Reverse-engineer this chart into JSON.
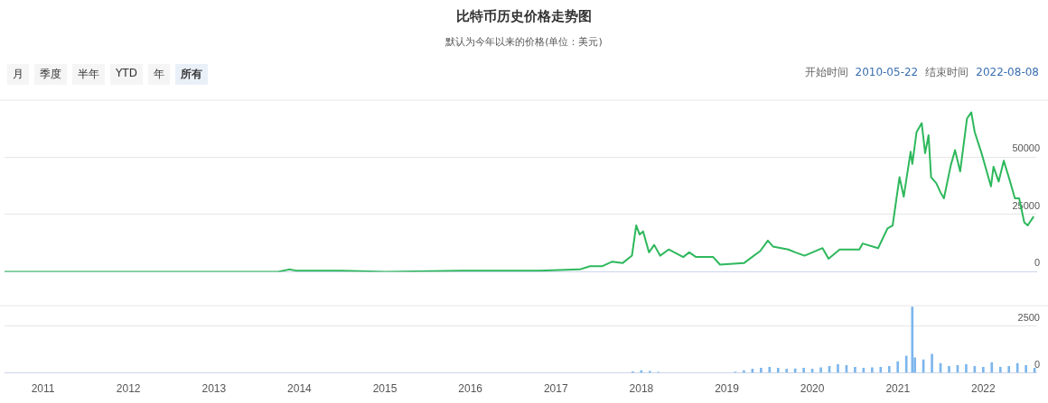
{
  "chart_data": [
    {
      "type": "line",
      "title": "比特币历史价格走势图",
      "subtitle": "默认为今年以来的价格(单位：美元)",
      "annotations": [
        "月",
        "季度",
        "半年",
        "YTD",
        "年",
        "所有",
        "开始时间",
        "2010-05-22",
        "结束时间",
        "2022-08-08"
      ],
      "xlim": [
        2010.55,
        2022.62
      ],
      "xticks": [
        2011,
        2012,
        2013,
        2014,
        2015,
        2016,
        2017,
        2018,
        2019,
        2020,
        2021,
        2022
      ],
      "ylim": [
        0,
        75000
      ],
      "yticks": [
        0,
        25000,
        50000
      ],
      "grid": "y",
      "tick_labels": "y",
      "marker": "none",
      "series": [
        {
          "color": "#2eb85c",
          "x": [
            2010.55,
            2013.12,
            2013.75,
            2013.88,
            2013.96,
            2014.12,
            2014.49,
            2015.01,
            2015.96,
            2016.38,
            2016.8,
            2017.28,
            2017.4,
            2017.54,
            2017.66,
            2017.78,
            2017.89,
            2017.94,
            2017.98,
            2018.02,
            2018.09,
            2018.15,
            2018.22,
            2018.32,
            2018.49,
            2018.56,
            2018.64,
            2018.84,
            2018.92,
            2019.2,
            2019.27,
            2019.39,
            2019.48,
            2019.54,
            2019.72,
            2019.8,
            2019.91,
            2020.12,
            2020.19,
            2020.32,
            2020.55,
            2020.59,
            2020.77,
            2020.88,
            2020.94,
            2021.02,
            2021.07,
            2021.15,
            2021.17,
            2021.22,
            2021.28,
            2021.32,
            2021.36,
            2021.39,
            2021.45,
            2021.5,
            2021.54,
            2021.62,
            2021.67,
            2021.73,
            2021.81,
            2021.86,
            2021.9,
            2021.98,
            2022.05,
            2022.09,
            2022.12,
            2022.18,
            2022.24,
            2022.31,
            2022.37,
            2022.42,
            2022.48,
            2022.52,
            2022.59
          ],
          "values": [
            0,
            0,
            0,
            1000,
            500,
            500,
            500,
            0,
            500,
            500,
            500,
            1000,
            2400,
            2400,
            4400,
            3750,
            7000,
            20200,
            16200,
            17600,
            8450,
            11700,
            7000,
            9700,
            6400,
            8450,
            6400,
            6400,
            3100,
            3750,
            5700,
            9000,
            13600,
            11000,
            9700,
            8450,
            7000,
            10300,
            5700,
            9700,
            9700,
            12300,
            10300,
            18900,
            20200,
            41200,
            32700,
            52300,
            47000,
            60900,
            64800,
            51700,
            59500,
            41200,
            38600,
            34600,
            32000,
            46400,
            53000,
            43700,
            66800,
            69500,
            60900,
            51700,
            42500,
            37200,
            45800,
            39300,
            48400,
            39800,
            32000,
            32000,
            21500,
            20200,
            24100
          ]
        }
      ]
    },
    {
      "type": "bar",
      "xlim": [
        2010.55,
        2022.62
      ],
      "xticks": [
        2011,
        2012,
        2013,
        2014,
        2015,
        2016,
        2017,
        2018,
        2019,
        2020,
        2021,
        2022
      ],
      "ylim": [
        0,
        3600
      ],
      "yticks": [
        0,
        2500
      ],
      "grid": "y",
      "series": [
        {
          "color": "#7db6ec",
          "x": [
            2017.9,
            2018.0,
            2018.1,
            2018.2,
            2019.1,
            2019.2,
            2019.3,
            2019.4,
            2019.5,
            2019.6,
            2019.7,
            2019.8,
            2019.9,
            2020.0,
            2020.1,
            2020.2,
            2020.3,
            2020.4,
            2020.5,
            2020.6,
            2020.7,
            2020.8,
            2020.9,
            2021.0,
            2021.1,
            2021.17,
            2021.2,
            2021.3,
            2021.4,
            2021.5,
            2021.6,
            2021.7,
            2021.8,
            2021.9,
            2022.0,
            2022.1,
            2022.2,
            2022.3,
            2022.4,
            2022.5,
            2022.6
          ],
          "values": [
            60,
            120,
            80,
            40,
            50,
            120,
            200,
            250,
            300,
            250,
            200,
            220,
            250,
            200,
            280,
            350,
            450,
            400,
            300,
            250,
            280,
            300,
            350,
            600,
            900,
            3500,
            800,
            700,
            1000,
            500,
            350,
            400,
            450,
            350,
            300,
            550,
            300,
            350,
            500,
            400,
            250
          ]
        }
      ]
    }
  ]
}
